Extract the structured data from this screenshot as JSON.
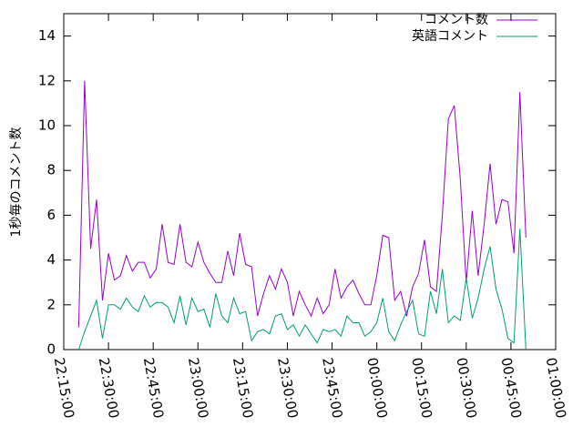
{
  "chart_data": {
    "type": "line",
    "y_label": "1秒毎のコメント数",
    "x": [
      "22:20:00",
      "22:22:00",
      "22:24:00",
      "22:26:00",
      "22:28:00",
      "22:30:00",
      "22:32:00",
      "22:34:00",
      "22:36:00",
      "22:38:00",
      "22:40:00",
      "22:42:00",
      "22:44:00",
      "22:46:00",
      "22:48:00",
      "22:50:00",
      "22:52:00",
      "22:54:00",
      "22:56:00",
      "22:58:00",
      "23:00:00",
      "23:02:00",
      "23:04:00",
      "23:06:00",
      "23:08:00",
      "23:10:00",
      "23:12:00",
      "23:14:00",
      "23:16:00",
      "23:18:00",
      "23:20:00",
      "23:22:00",
      "23:24:00",
      "23:26:00",
      "23:28:00",
      "23:30:00",
      "23:32:00",
      "23:34:00",
      "23:36:00",
      "23:38:00",
      "23:40:00",
      "23:42:00",
      "23:44:00",
      "23:46:00",
      "23:48:00",
      "23:50:00",
      "23:52:00",
      "23:54:00",
      "23:56:00",
      "23:58:00",
      "00:00:00",
      "00:02:00",
      "00:04:00",
      "00:06:00",
      "00:08:00",
      "00:10:00",
      "00:12:00",
      "00:14:00",
      "00:16:00",
      "00:18:00",
      "00:20:00",
      "00:22:00",
      "00:24:00",
      "00:26:00",
      "00:28:00",
      "00:30:00",
      "00:32:00",
      "00:34:00",
      "00:36:00",
      "00:38:00",
      "00:40:00",
      "00:42:00",
      "00:44:00",
      "00:46:00",
      "00:48:00",
      "00:50:00"
    ],
    "series": [
      {
        "name": "コメント数",
        "color": "#9400d3",
        "values": [
          1.0,
          12.0,
          4.5,
          6.7,
          2.2,
          4.3,
          3.1,
          3.3,
          4.2,
          3.5,
          3.9,
          3.9,
          3.2,
          3.6,
          5.6,
          3.9,
          3.8,
          5.6,
          3.9,
          3.7,
          4.8,
          3.9,
          3.4,
          3.0,
          3.0,
          4.4,
          3.3,
          5.2,
          3.8,
          3.7,
          1.5,
          2.5,
          3.3,
          2.7,
          3.6,
          3.0,
          1.5,
          2.6,
          2.0,
          1.5,
          2.3,
          1.6,
          2.0,
          3.6,
          2.3,
          2.8,
          3.1,
          2.5,
          2.0,
          2.0,
          3.3,
          5.1,
          5.0,
          2.2,
          2.6,
          1.5,
          2.8,
          3.4,
          4.9,
          2.8,
          2.6,
          6.0,
          10.3,
          10.9,
          7.6,
          3.0,
          6.2,
          3.3,
          5.6,
          8.3,
          5.6,
          6.7,
          6.6,
          4.3,
          11.5,
          5.0
        ]
      },
      {
        "name": "英語コメント",
        "color": "#009e73",
        "values": [
          0.0,
          0.8,
          1.5,
          2.2,
          0.5,
          2.0,
          2.0,
          1.8,
          2.3,
          1.9,
          1.7,
          2.4,
          1.9,
          2.1,
          2.1,
          1.9,
          1.2,
          2.4,
          1.1,
          2.3,
          1.7,
          1.8,
          1.0,
          2.5,
          1.5,
          1.2,
          2.3,
          1.6,
          1.7,
          0.4,
          0.8,
          0.9,
          0.7,
          1.5,
          1.6,
          0.9,
          1.1,
          0.6,
          1.1,
          0.7,
          0.3,
          0.9,
          0.8,
          0.9,
          0.6,
          1.5,
          1.2,
          1.2,
          0.6,
          0.8,
          1.2,
          2.3,
          0.8,
          0.4,
          1.1,
          1.7,
          2.2,
          0.7,
          0.6,
          2.6,
          1.6,
          3.6,
          1.2,
          1.5,
          1.3,
          3.2,
          1.4,
          2.3,
          3.6,
          4.6,
          2.7,
          1.8,
          0.5,
          0.3,
          5.4,
          0.0
        ]
      }
    ],
    "xlim": [
      "22:15:00",
      "01:00:00"
    ],
    "xticks": [
      "22:15:00",
      "22:30:00",
      "22:45:00",
      "23:00:00",
      "23:15:00",
      "23:30:00",
      "23:45:00",
      "00:00:00",
      "00:15:00",
      "00:30:00",
      "00:45:00",
      "01:00:00"
    ],
    "ylim": [
      0,
      15
    ],
    "yticks": [
      0,
      2,
      4,
      6,
      8,
      10,
      12,
      14
    ],
    "legend": "top-right"
  }
}
